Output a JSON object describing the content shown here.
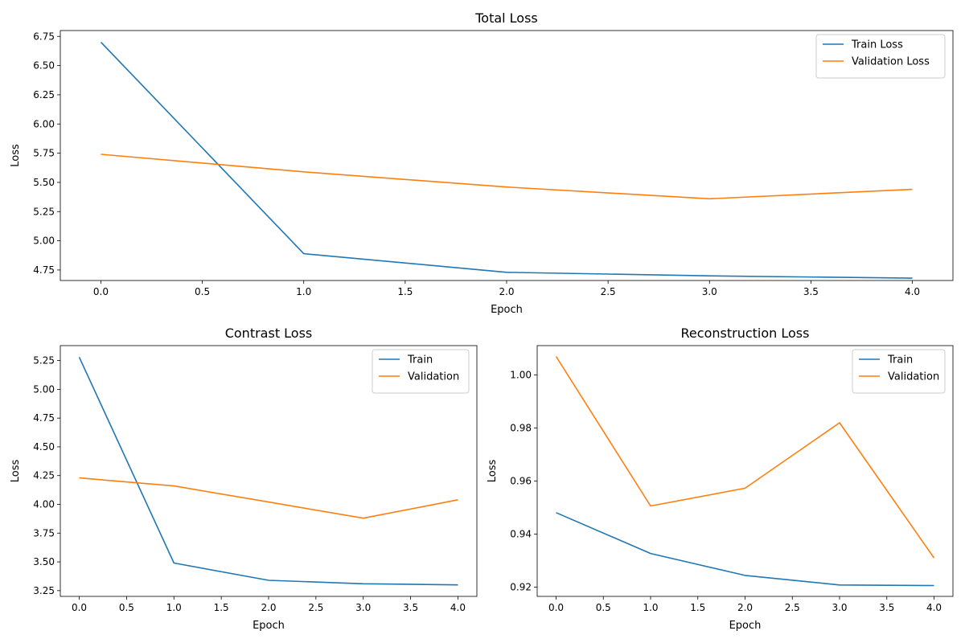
{
  "chart_data": [
    {
      "type": "line",
      "title": "Total Loss",
      "xlabel": "Epoch",
      "ylabel": "Loss",
      "x": [
        0,
        1,
        2,
        3,
        4
      ],
      "xlim": [
        -0.2,
        4.2
      ],
      "ylim": [
        4.66,
        6.8
      ],
      "xticks": [
        0.0,
        0.5,
        1.0,
        1.5,
        2.0,
        2.5,
        3.0,
        3.5,
        4.0
      ],
      "yticks": [
        4.75,
        5.0,
        5.25,
        5.5,
        5.75,
        6.0,
        6.25,
        6.5,
        6.75
      ],
      "grid": false,
      "legend": "top-right",
      "series": [
        {
          "name": "Train Loss",
          "color": "#1f77b4",
          "values": [
            6.7,
            4.89,
            4.73,
            4.7,
            4.68
          ]
        },
        {
          "name": "Validation Loss",
          "color": "#ff7f0e",
          "values": [
            5.74,
            5.59,
            5.46,
            5.36,
            5.44
          ]
        }
      ]
    },
    {
      "type": "line",
      "title": "Contrast Loss",
      "xlabel": "Epoch",
      "ylabel": "Loss",
      "x": [
        0,
        1,
        2,
        3,
        4
      ],
      "xlim": [
        -0.2,
        4.2
      ],
      "ylim": [
        3.2,
        5.38
      ],
      "xticks": [
        0.0,
        0.5,
        1.0,
        1.5,
        2.0,
        2.5,
        3.0,
        3.5,
        4.0
      ],
      "yticks": [
        3.25,
        3.5,
        3.75,
        4.0,
        4.25,
        4.5,
        4.75,
        5.0,
        5.25
      ],
      "grid": false,
      "legend": "top-right",
      "series": [
        {
          "name": "Train",
          "color": "#1f77b4",
          "values": [
            5.28,
            3.49,
            3.34,
            3.31,
            3.3
          ]
        },
        {
          "name": "Validation",
          "color": "#ff7f0e",
          "values": [
            4.23,
            4.16,
            4.02,
            3.88,
            4.04
          ]
        }
      ]
    },
    {
      "type": "line",
      "title": "Reconstruction Loss",
      "xlabel": "Epoch",
      "ylabel": "Loss",
      "x": [
        0,
        1,
        2,
        3,
        4
      ],
      "xlim": [
        -0.2,
        4.2
      ],
      "ylim": [
        0.9165,
        1.0111
      ],
      "xticks": [
        0.0,
        0.5,
        1.0,
        1.5,
        2.0,
        2.5,
        3.0,
        3.5,
        4.0
      ],
      "yticks": [
        0.92,
        0.94,
        0.96,
        0.98,
        1.0
      ],
      "grid": false,
      "legend": "top-right",
      "series": [
        {
          "name": "Train",
          "color": "#1f77b4",
          "values": [
            0.9481,
            0.9327,
            0.9244,
            0.9208,
            0.9206
          ]
        },
        {
          "name": "Validation",
          "color": "#ff7f0e",
          "values": [
            1.007,
            0.9506,
            0.9573,
            0.982,
            0.931
          ]
        }
      ]
    }
  ]
}
